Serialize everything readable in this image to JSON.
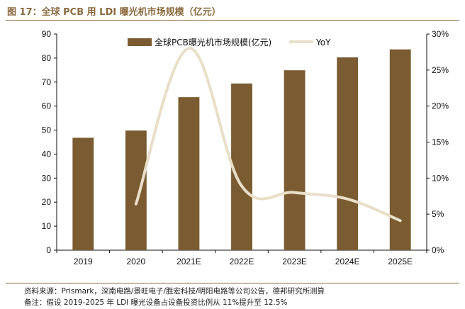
{
  "figure": {
    "title": "图 17：全球 PCB 用 LDI 曝光机市场规模（亿元）",
    "source": "资料来源：Prismark，深南电路/景旺电子/胜宏科技/明阳电路等公司公告，德邦研究所测算",
    "note": "备注：假设 2019-2025 年 LDI 曝光设备占设备投资比例从 11%提升至 12.5%"
  },
  "colors": {
    "bar": "#7B5B31",
    "line": "#E9DFC8",
    "title": "#8B6A3E"
  },
  "chart_data": {
    "type": "bar",
    "categories": [
      "2019",
      "2020",
      "2021E",
      "2022E",
      "2023E",
      "2024E",
      "2025E"
    ],
    "series": [
      {
        "name": "全球PCB曝光机市场规模(亿元)",
        "type": "bar",
        "axis": "left",
        "values": [
          46.8,
          49.8,
          63.7,
          69.4,
          74.9,
          80.3,
          83.6
        ]
      },
      {
        "name": "YoY",
        "type": "line",
        "axis": "right",
        "values": [
          6.4,
          28.0,
          8.9,
          8.0,
          7.1,
          4.1
        ],
        "x": [
          "2020",
          "2021E",
          "2022E",
          "2023E",
          "2024E",
          "2025E"
        ]
      }
    ],
    "left_axis": {
      "min": 0,
      "max": 90,
      "ticks": [
        "0",
        "10",
        "20",
        "30",
        "40",
        "50",
        "60",
        "70",
        "80",
        "90"
      ]
    },
    "right_axis": {
      "min": 0,
      "max": 30,
      "ticks": [
        "0%",
        "5%",
        "10%",
        "15%",
        "20%",
        "25%",
        "30%"
      ]
    },
    "legend": "top-right",
    "grid": false
  }
}
